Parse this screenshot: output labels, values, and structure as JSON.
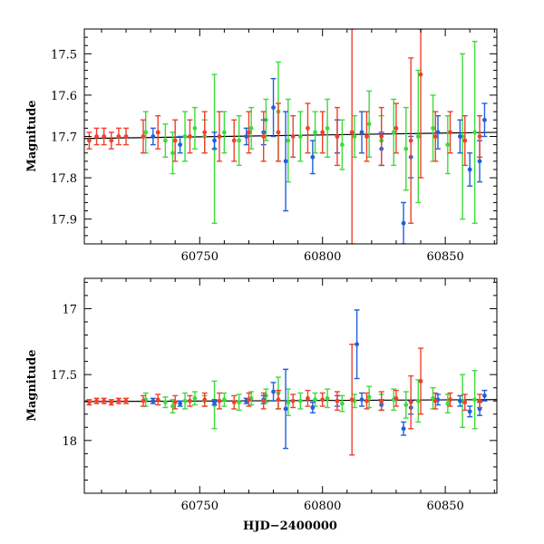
{
  "chart_data": [
    {
      "type": "scatter",
      "title": "",
      "xlabel": "",
      "ylabel": "Magnitude",
      "xlim": [
        60703,
        60871
      ],
      "ylim": [
        17.96,
        17.44
      ],
      "y_inverted": true,
      "x_ticks": [
        60750,
        60800,
        60850
      ],
      "y_ticks": [
        17.5,
        17.6,
        17.7,
        17.8,
        17.9
      ],
      "y_tick_labels": [
        "17.5",
        "17.6",
        "17.7",
        "17.8",
        "17.9"
      ],
      "x_tick_labels": [
        "60750",
        "60800",
        "60850"
      ],
      "fit_line": {
        "x": [
          60703,
          60871
        ],
        "y": [
          17.705,
          17.69
        ]
      },
      "series": [
        {
          "color": "#3cdc3c",
          "x": [
            60728,
            60736,
            60739,
            60744,
            60748,
            60752,
            60756,
            60760,
            60766,
            60771,
            60777,
            60782,
            60786,
            60791,
            60797,
            60802,
            60808,
            60813,
            60819,
            60824,
            60829,
            60834,
            60839,
            60845,
            60851,
            60857,
            60862
          ],
          "y": [
            17.69,
            17.71,
            17.74,
            17.7,
            17.68,
            17.7,
            17.73,
            17.69,
            17.71,
            17.68,
            17.66,
            17.64,
            17.71,
            17.7,
            17.69,
            17.68,
            17.72,
            17.7,
            17.67,
            17.71,
            17.69,
            17.73,
            17.7,
            17.68,
            17.72,
            17.7,
            17.69
          ],
          "err": [
            0.05,
            0.04,
            0.05,
            0.06,
            0.05,
            0.04,
            0.18,
            0.05,
            0.06,
            0.05,
            0.05,
            0.12,
            0.1,
            0.06,
            0.05,
            0.07,
            0.06,
            0.05,
            0.08,
            0.06,
            0.08,
            0.1,
            0.16,
            0.08,
            0.07,
            0.2,
            0.22
          ]
        },
        {
          "color": "#1f5fdc",
          "x": [
            60731,
            60742,
            60756,
            60769,
            60776,
            60780,
            60785,
            60796,
            60806,
            60816,
            60824,
            60833,
            60836,
            60847,
            60856,
            60860,
            60864,
            60866
          ],
          "y": [
            17.7,
            17.72,
            17.71,
            17.7,
            17.69,
            17.63,
            17.76,
            17.75,
            17.7,
            17.69,
            17.73,
            17.91,
            17.75,
            17.69,
            17.7,
            17.78,
            17.76,
            17.66
          ],
          "err": [
            0.02,
            0.02,
            0.02,
            0.02,
            0.03,
            0.07,
            0.12,
            0.04,
            0.04,
            0.05,
            0.04,
            0.05,
            0.05,
            0.04,
            0.04,
            0.04,
            0.05,
            0.04
          ]
        },
        {
          "color": "#f0412c",
          "x": [
            60705,
            60708,
            60711,
            60714,
            60717,
            60720,
            60727,
            60733,
            60740,
            60746,
            60752,
            60758,
            60764,
            60770,
            60776,
            60782,
            60788,
            60794,
            60800,
            60806,
            60812,
            60818,
            60824,
            60830,
            60836,
            60840,
            60846,
            60852,
            60858,
            60864
          ],
          "y": [
            17.71,
            17.7,
            17.7,
            17.71,
            17.7,
            17.7,
            17.7,
            17.69,
            17.71,
            17.7,
            17.69,
            17.7,
            17.71,
            17.69,
            17.7,
            17.69,
            17.7,
            17.68,
            17.69,
            17.7,
            17.69,
            17.7,
            17.7,
            17.68,
            17.71,
            17.55,
            17.7,
            17.69,
            17.71,
            17.7
          ],
          "err": [
            0.02,
            0.02,
            0.02,
            0.02,
            0.02,
            0.02,
            0.04,
            0.04,
            0.05,
            0.04,
            0.05,
            0.06,
            0.05,
            0.05,
            0.06,
            0.07,
            0.05,
            0.06,
            0.05,
            0.07,
            0.3,
            0.06,
            0.07,
            0.06,
            0.2,
            0.25,
            0.06,
            0.05,
            0.06,
            0.05
          ]
        }
      ]
    },
    {
      "type": "scatter",
      "title": "",
      "xlabel": "HJD−2400000",
      "ylabel": "Magnitude",
      "xlim": [
        60703,
        60871
      ],
      "ylim": [
        18.4,
        16.77
      ],
      "y_inverted": true,
      "x_ticks": [
        60750,
        60800,
        60850
      ],
      "y_ticks": [
        17,
        17.5,
        18
      ],
      "y_tick_labels": [
        "17",
        "17.5",
        "18"
      ],
      "x_tick_labels": [
        "60750",
        "60800",
        "60850"
      ],
      "fit_line": {
        "x": [
          60703,
          60871
        ],
        "y": [
          17.705,
          17.69
        ]
      },
      "series": [
        {
          "color": "#3cdc3c",
          "x": [
            60728,
            60736,
            60739,
            60744,
            60748,
            60752,
            60756,
            60760,
            60766,
            60771,
            60777,
            60782,
            60786,
            60791,
            60797,
            60802,
            60808,
            60813,
            60819,
            60824,
            60829,
            60834,
            60839,
            60845,
            60851,
            60857,
            60862
          ],
          "y": [
            17.69,
            17.71,
            17.74,
            17.7,
            17.68,
            17.7,
            17.73,
            17.69,
            17.71,
            17.68,
            17.66,
            17.64,
            17.71,
            17.7,
            17.69,
            17.68,
            17.72,
            17.7,
            17.67,
            17.71,
            17.69,
            17.73,
            17.7,
            17.68,
            17.72,
            17.7,
            17.69
          ],
          "err": [
            0.05,
            0.04,
            0.05,
            0.06,
            0.05,
            0.04,
            0.18,
            0.05,
            0.06,
            0.05,
            0.05,
            0.12,
            0.1,
            0.06,
            0.05,
            0.07,
            0.06,
            0.05,
            0.08,
            0.06,
            0.08,
            0.1,
            0.16,
            0.08,
            0.07,
            0.2,
            0.22
          ]
        },
        {
          "color": "#1f5fdc",
          "x": [
            60731,
            60742,
            60756,
            60769,
            60776,
            60780,
            60785,
            60796,
            60806,
            60814,
            60816,
            60824,
            60833,
            60836,
            60847,
            60856,
            60860,
            60864,
            60866
          ],
          "y": [
            17.7,
            17.72,
            17.71,
            17.7,
            17.69,
            17.63,
            17.76,
            17.75,
            17.7,
            17.27,
            17.69,
            17.73,
            17.91,
            17.75,
            17.69,
            17.7,
            17.78,
            17.76,
            17.66
          ],
          "err": [
            0.02,
            0.02,
            0.02,
            0.02,
            0.03,
            0.07,
            0.3,
            0.04,
            0.04,
            0.26,
            0.05,
            0.04,
            0.05,
            0.05,
            0.04,
            0.04,
            0.04,
            0.05,
            0.04
          ]
        },
        {
          "color": "#f0412c",
          "x": [
            60705,
            60708,
            60711,
            60714,
            60717,
            60720,
            60727,
            60733,
            60740,
            60746,
            60752,
            60758,
            60764,
            60770,
            60776,
            60782,
            60788,
            60794,
            60800,
            60806,
            60812,
            60818,
            60824,
            60830,
            60836,
            60840,
            60846,
            60852,
            60858,
            60864
          ],
          "y": [
            17.71,
            17.7,
            17.7,
            17.71,
            17.7,
            17.7,
            17.7,
            17.69,
            17.71,
            17.7,
            17.69,
            17.7,
            17.71,
            17.69,
            17.7,
            17.69,
            17.7,
            17.68,
            17.69,
            17.7,
            17.69,
            17.7,
            17.7,
            17.68,
            17.71,
            17.55,
            17.7,
            17.69,
            17.71,
            17.7
          ],
          "err": [
            0.02,
            0.02,
            0.02,
            0.02,
            0.02,
            0.02,
            0.04,
            0.04,
            0.05,
            0.04,
            0.05,
            0.06,
            0.05,
            0.05,
            0.06,
            0.07,
            0.05,
            0.06,
            0.05,
            0.07,
            0.42,
            0.06,
            0.07,
            0.06,
            0.2,
            0.25,
            0.06,
            0.05,
            0.06,
            0.05
          ]
        }
      ]
    }
  ]
}
